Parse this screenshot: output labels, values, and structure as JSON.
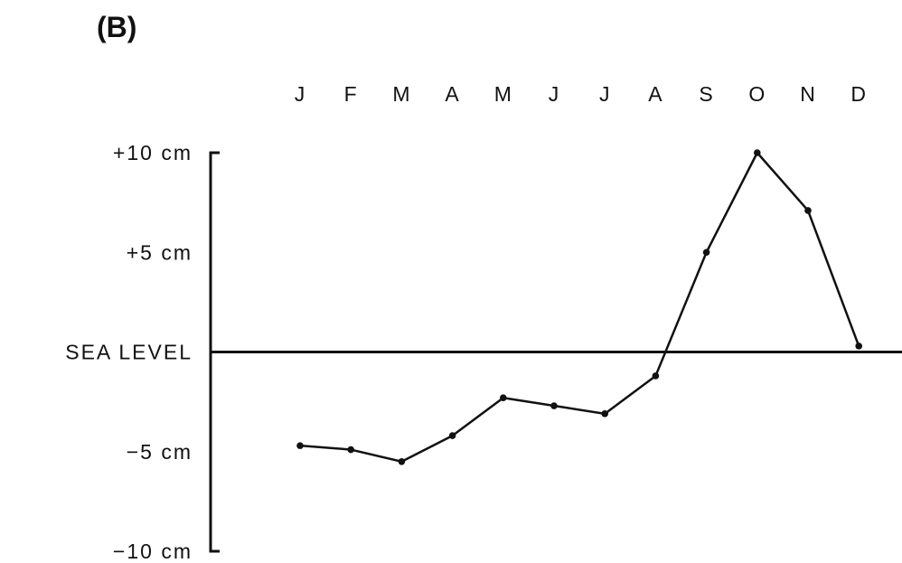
{
  "panel_label": "(B)",
  "chart_data": {
    "type": "line",
    "categories": [
      "J",
      "F",
      "M",
      "A",
      "M",
      "J",
      "J",
      "A",
      "S",
      "O",
      "N",
      "D"
    ],
    "series": [
      {
        "values": [
          -4.7,
          -4.9,
          -5.5,
          -4.2,
          -2.3,
          -2.7,
          -3.1,
          -1.2,
          5.0,
          10.0,
          7.1,
          0.3
        ]
      }
    ],
    "y_tick_values": [
      10,
      5,
      0,
      -5,
      -10
    ],
    "y_tick_labels": [
      "+10 cm",
      "+5 cm",
      "SEA LEVEL",
      "−5 cm",
      "−10 cm"
    ],
    "ylim": [
      -10,
      10
    ],
    "xaxis_position": "top",
    "reference_line": 0,
    "grid": false,
    "legend": "none",
    "colors": {
      "line": "#111111",
      "background": "#ffffff"
    }
  }
}
